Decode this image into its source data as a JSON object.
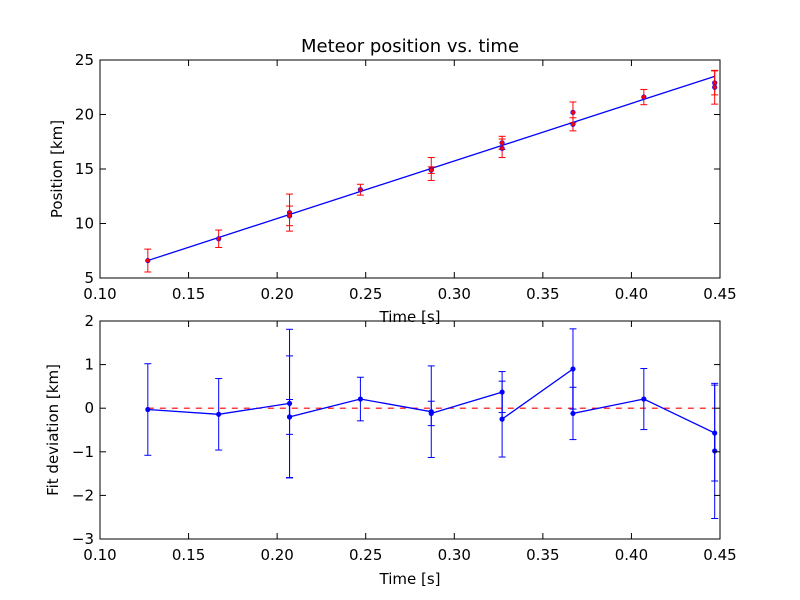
{
  "chart_data": [
    {
      "type": "scatter",
      "title": "Meteor position vs. time",
      "xlabel": "Time [s]",
      "ylabel": "Position [km]",
      "xlim": [
        0.1,
        0.45
      ],
      "ylim": [
        5,
        25
      ],
      "xticks": [
        "0.10",
        "0.15",
        "0.20",
        "0.25",
        "0.30",
        "0.35",
        "0.40",
        "0.45"
      ],
      "yticks": [
        "5",
        "10",
        "15",
        "20",
        "25"
      ],
      "colors": {
        "points": "#ff0000",
        "errorbars": "#ff0000",
        "fit_line": "#0000ff"
      },
      "points": [
        {
          "x": 0.127,
          "y": 6.6,
          "err": 1.05
        },
        {
          "x": 0.167,
          "y": 8.6,
          "err": 0.8
        },
        {
          "x": 0.207,
          "y": 11.0,
          "err": 1.7
        },
        {
          "x": 0.207,
          "y": 10.7,
          "err": 0.9
        },
        {
          "x": 0.247,
          "y": 13.1,
          "err": 0.5
        },
        {
          "x": 0.287,
          "y": 15.0,
          "err": 1.05
        },
        {
          "x": 0.287,
          "y": 14.9,
          "err": 0.3
        },
        {
          "x": 0.327,
          "y": 17.4,
          "err": 0.6
        },
        {
          "x": 0.327,
          "y": 16.9,
          "err": 0.85
        },
        {
          "x": 0.367,
          "y": 20.2,
          "err": 0.95
        },
        {
          "x": 0.367,
          "y": 19.1,
          "err": 0.6
        },
        {
          "x": 0.407,
          "y": 21.6,
          "err": 0.7
        },
        {
          "x": 0.447,
          "y": 22.9,
          "err": 1.1
        },
        {
          "x": 0.447,
          "y": 22.5,
          "err": 1.55
        }
      ],
      "fit_line": {
        "x": [
          0.127,
          0.447
        ],
        "y": [
          6.6,
          23.5
        ]
      }
    },
    {
      "type": "line",
      "xlabel": "Time [s]",
      "ylabel": "Fit deviation [km]",
      "xlim": [
        0.1,
        0.45
      ],
      "ylim": [
        -3,
        2
      ],
      "xticks": [
        "0.10",
        "0.15",
        "0.20",
        "0.25",
        "0.30",
        "0.35",
        "0.40",
        "0.45"
      ],
      "yticks": [
        "−3",
        "−2",
        "−1",
        "0",
        "1",
        "2"
      ],
      "ytick_values": [
        -3,
        -2,
        -1,
        0,
        1,
        2
      ],
      "colors": {
        "series": "#0000ff",
        "zero_line": "#ff0000"
      },
      "zero_line": 0,
      "points": [
        {
          "x": 0.127,
          "y": -0.03,
          "err": 1.05
        },
        {
          "x": 0.167,
          "y": -0.14,
          "err": 0.82
        },
        {
          "x": 0.207,
          "y": 0.11,
          "err": 1.7
        },
        {
          "x": 0.207,
          "y": -0.2,
          "err": 0.4
        },
        {
          "x": 0.207,
          "y": -0.2,
          "err": 1.4
        },
        {
          "x": 0.247,
          "y": 0.21,
          "err": 0.5
        },
        {
          "x": 0.287,
          "y": -0.08,
          "err": 1.05
        },
        {
          "x": 0.287,
          "y": -0.12,
          "err": 0.28
        },
        {
          "x": 0.327,
          "y": 0.37,
          "err": 0.47
        },
        {
          "x": 0.327,
          "y": -0.25,
          "err": 0.87
        },
        {
          "x": 0.367,
          "y": 0.9,
          "err": 0.92
        },
        {
          "x": 0.367,
          "y": -0.12,
          "err": 0.6
        },
        {
          "x": 0.407,
          "y": 0.21,
          "err": 0.7
        },
        {
          "x": 0.447,
          "y": -0.57,
          "err": 1.1
        },
        {
          "x": 0.447,
          "y": -0.98,
          "err": 1.55
        }
      ]
    }
  ]
}
